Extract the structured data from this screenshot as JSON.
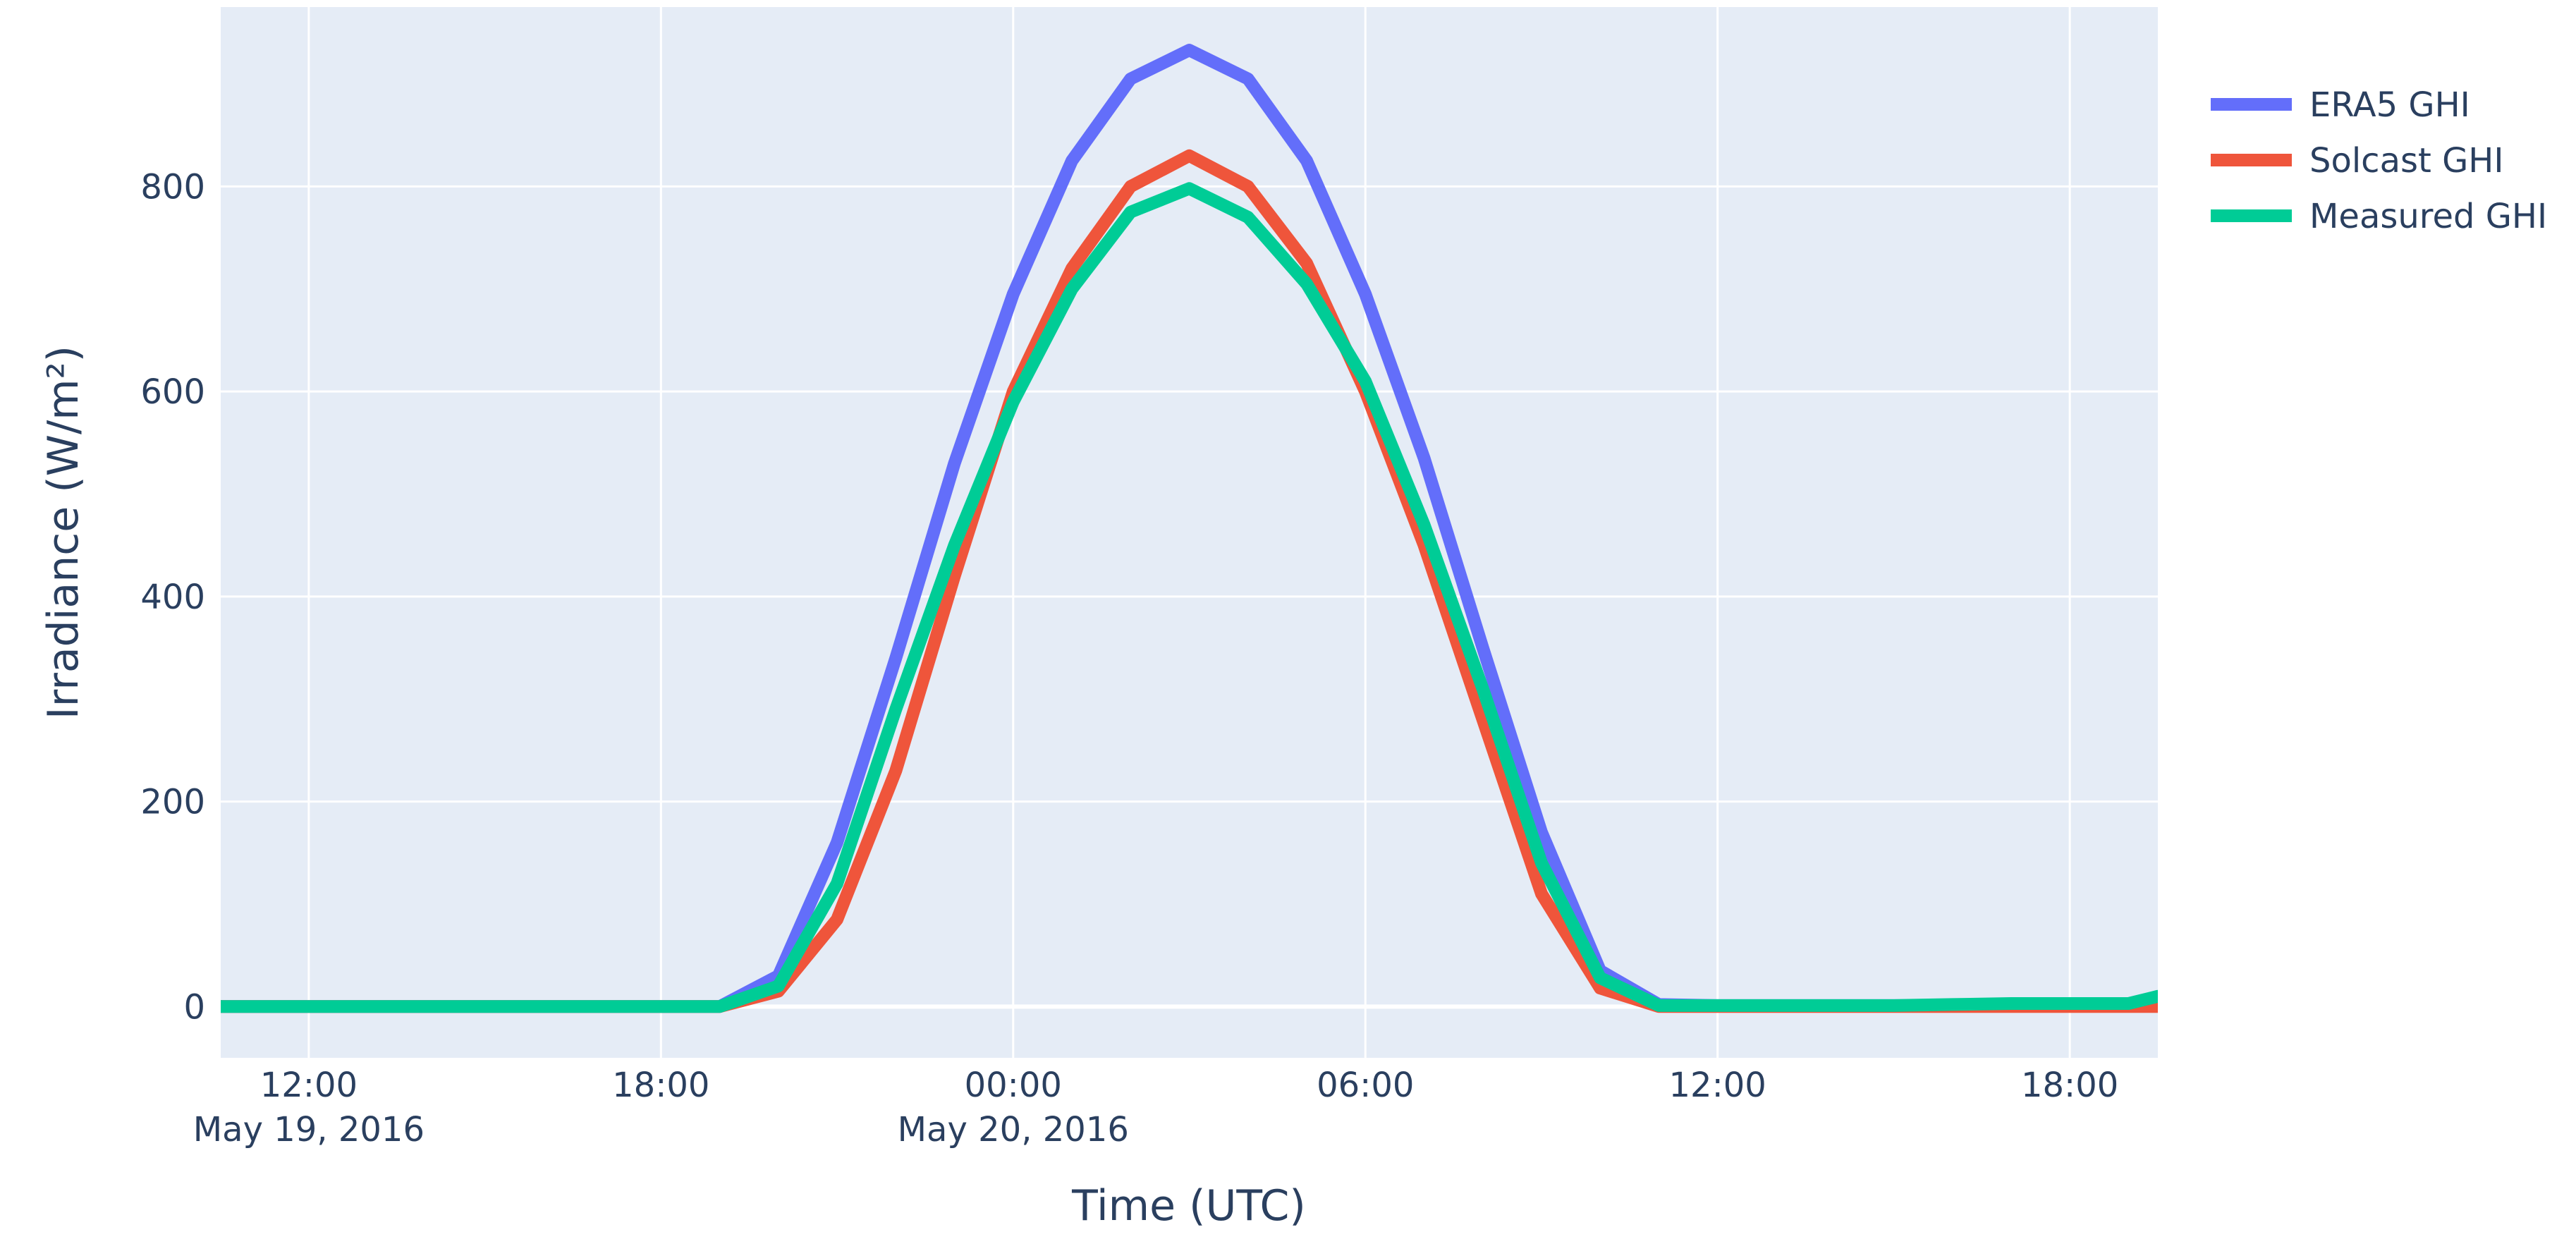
{
  "chart_data": {
    "type": "line",
    "x_unit": "hour",
    "xlabel": "Time (UTC)",
    "ylabel": "Irradiance (W/m²)",
    "xlim": [
      "2016-05-19 10:30",
      "2016-05-20 19:30"
    ],
    "ylim": [
      -50,
      975
    ],
    "x_ticks": [
      {
        "label": "12:00",
        "sublabel": "May 19, 2016",
        "value": "2016-05-19 12:00"
      },
      {
        "label": "18:00",
        "sublabel": "",
        "value": "2016-05-19 18:00"
      },
      {
        "label": "00:00",
        "sublabel": "May 20, 2016",
        "value": "2016-05-20 00:00"
      },
      {
        "label": "06:00",
        "sublabel": "",
        "value": "2016-05-20 06:00"
      },
      {
        "label": "12:00",
        "sublabel": "",
        "value": "2016-05-20 12:00"
      },
      {
        "label": "18:00",
        "sublabel": "",
        "value": "2016-05-20 18:00"
      }
    ],
    "y_ticks": [
      0,
      200,
      400,
      600,
      800
    ],
    "grid": true,
    "legend_position": "top-right",
    "background_color": "#e5ecf6",
    "x": [
      "2016-05-19 10:30",
      "2016-05-19 11:00",
      "2016-05-19 12:00",
      "2016-05-19 13:00",
      "2016-05-19 14:00",
      "2016-05-19 15:00",
      "2016-05-19 16:00",
      "2016-05-19 17:00",
      "2016-05-19 18:00",
      "2016-05-19 19:00",
      "2016-05-19 20:00",
      "2016-05-19 21:00",
      "2016-05-19 22:00",
      "2016-05-19 23:00",
      "2016-05-20 00:00",
      "2016-05-20 01:00",
      "2016-05-20 02:00",
      "2016-05-20 03:00",
      "2016-05-20 04:00",
      "2016-05-20 05:00",
      "2016-05-20 06:00",
      "2016-05-20 07:00",
      "2016-05-20 08:00",
      "2016-05-20 09:00",
      "2016-05-20 10:00",
      "2016-05-20 11:00",
      "2016-05-20 12:00",
      "2016-05-20 13:00",
      "2016-05-20 14:00",
      "2016-05-20 15:00",
      "2016-05-20 16:00",
      "2016-05-20 17:00",
      "2016-05-20 18:00",
      "2016-05-20 19:00",
      "2016-05-20 19:30"
    ],
    "series": [
      {
        "name": "ERA5 GHI",
        "color": "#636efa",
        "values": [
          0,
          0,
          0,
          0,
          0,
          0,
          0,
          0,
          0,
          0,
          30,
          160,
          340,
          530,
          695,
          825,
          905,
          933,
          905,
          825,
          695,
          535,
          350,
          170,
          35,
          2,
          1,
          1,
          1,
          1,
          1,
          1,
          1,
          1,
          1
        ]
      },
      {
        "name": "Solcast GHI",
        "color": "#EF553B",
        "values": [
          0,
          0,
          0,
          0,
          0,
          0,
          0,
          0,
          0,
          0,
          15,
          85,
          230,
          420,
          600,
          720,
          800,
          830,
          800,
          725,
          600,
          450,
          280,
          110,
          18,
          0,
          0,
          0,
          0,
          0,
          0,
          0,
          0,
          0,
          0
        ]
      },
      {
        "name": "Measured GHI",
        "color": "#00cc96",
        "values": [
          0,
          0,
          0,
          0,
          0,
          0,
          0,
          0,
          0,
          0,
          20,
          120,
          290,
          450,
          590,
          700,
          775,
          798,
          770,
          705,
          610,
          470,
          310,
          140,
          28,
          1,
          1,
          1,
          1,
          1,
          2,
          3,
          3,
          3,
          10
        ]
      }
    ]
  }
}
